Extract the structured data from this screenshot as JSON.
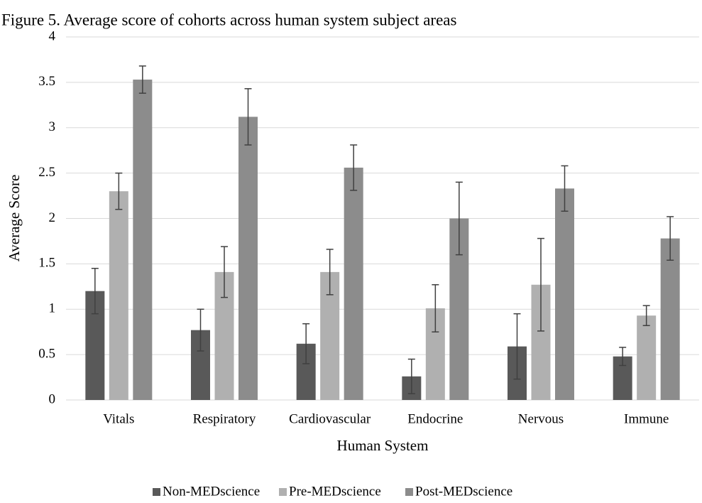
{
  "chart_data": {
    "type": "bar",
    "title": "Figure 5. Average score of cohorts across human system subject areas",
    "x_label": "Human System",
    "y_label": "Average Score",
    "categories": [
      "Vitals",
      "Respiratory",
      "Cardiovascular",
      "Endocrine",
      "Nervous",
      "Immune"
    ],
    "series": [
      {
        "name": "Non-MEDscience",
        "color": "#595959",
        "values": [
          1.2,
          0.77,
          0.62,
          0.26,
          0.59,
          0.48
        ],
        "errors": [
          0.25,
          0.23,
          0.22,
          0.19,
          0.36,
          0.1
        ]
      },
      {
        "name": "Pre-MEDscience",
        "color": "#b0b0b0",
        "values": [
          2.3,
          1.41,
          1.41,
          1.01,
          1.27,
          0.93
        ],
        "errors": [
          0.2,
          0.28,
          0.25,
          0.26,
          0.51,
          0.11
        ]
      },
      {
        "name": "Post-MEDscience",
        "color": "#8c8c8c",
        "values": [
          3.53,
          3.12,
          2.56,
          2.0,
          2.33,
          1.78
        ],
        "errors": [
          0.15,
          0.31,
          0.25,
          0.4,
          0.25,
          0.24
        ]
      }
    ],
    "ylim": [
      0,
      4
    ],
    "yticks": [
      0,
      0.5,
      1,
      1.5,
      2,
      2.5,
      3,
      3.5,
      4
    ],
    "grid": true,
    "legend": "bottom"
  }
}
